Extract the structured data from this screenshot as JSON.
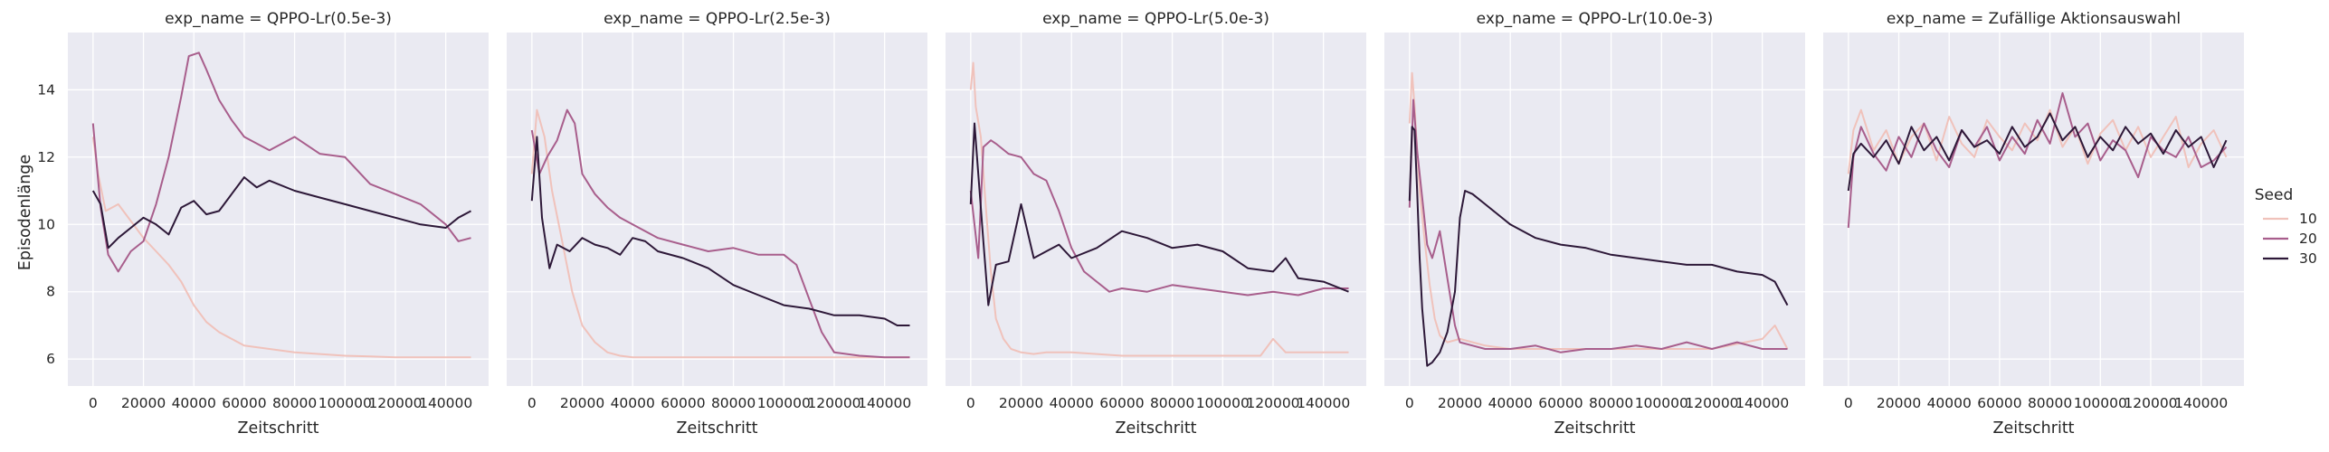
{
  "chart_data": {
    "type": "line",
    "xlabel": "Zeitschritt",
    "ylabel": "Episodenlänge",
    "xlim": [
      -10000,
      157000
    ],
    "ylim": [
      5.2,
      15.7
    ],
    "xticks": [
      0,
      20000,
      40000,
      60000,
      80000,
      100000,
      120000,
      140000
    ],
    "xtick_labels": [
      "0",
      "20000",
      "40000",
      "60000",
      "80000",
      "100000",
      "120000",
      "140000"
    ],
    "yticks": [
      6,
      8,
      10,
      12,
      14
    ],
    "ytick_labels": [
      "6",
      "8",
      "10",
      "12",
      "14"
    ],
    "grid": true,
    "legend": {
      "title": "Seed",
      "placement": "right",
      "entries": [
        {
          "label": "10",
          "color": "#f0c2bb"
        },
        {
          "label": "20",
          "color": "#a85e8c"
        },
        {
          "label": "30",
          "color": "#2d1838"
        }
      ]
    },
    "panels": [
      {
        "title": "exp_name = QPPO-Lr(0.5e-3)",
        "series": [
          {
            "name": "10",
            "x": [
              0,
              2000,
              5000,
              10000,
              15000,
              20000,
              25000,
              30000,
              35000,
              40000,
              45000,
              50000,
              60000,
              70000,
              80000,
              90000,
              100000,
              110000,
              120000,
              130000,
              140000,
              150000
            ],
            "y": [
              12.6,
              11.5,
              10.4,
              10.6,
              10.1,
              9.6,
              9.2,
              8.8,
              8.3,
              7.6,
              7.1,
              6.8,
              6.4,
              6.3,
              6.2,
              6.15,
              6.1,
              6.08,
              6.05,
              6.05,
              6.05,
              6.05
            ]
          },
          {
            "name": "20",
            "x": [
              0,
              3000,
              6000,
              10000,
              15000,
              20000,
              25000,
              30000,
              35000,
              38000,
              42000,
              45000,
              50000,
              55000,
              60000,
              70000,
              80000,
              90000,
              100000,
              110000,
              120000,
              130000,
              140000,
              145000,
              150000
            ],
            "y": [
              13.0,
              10.5,
              9.1,
              8.6,
              9.2,
              9.5,
              10.6,
              12.0,
              13.8,
              15.0,
              15.1,
              14.6,
              13.7,
              13.1,
              12.6,
              12.2,
              12.6,
              12.1,
              12.0,
              11.2,
              10.9,
              10.6,
              10.0,
              9.5,
              9.6
            ]
          },
          {
            "name": "30",
            "x": [
              0,
              3000,
              6000,
              10000,
              15000,
              20000,
              25000,
              30000,
              35000,
              40000,
              45000,
              50000,
              55000,
              60000,
              65000,
              70000,
              80000,
              90000,
              100000,
              110000,
              120000,
              130000,
              140000,
              145000,
              150000
            ],
            "y": [
              11.0,
              10.6,
              9.3,
              9.6,
              9.9,
              10.2,
              10.0,
              9.7,
              10.5,
              10.7,
              10.3,
              10.4,
              10.9,
              11.4,
              11.1,
              11.3,
              11.0,
              10.8,
              10.6,
              10.4,
              10.2,
              10.0,
              9.9,
              10.2,
              10.4
            ]
          }
        ]
      },
      {
        "title": "exp_name = QPPO-Lr(2.5e-3)",
        "series": [
          {
            "name": "10",
            "x": [
              0,
              2000,
              5000,
              8000,
              12000,
              16000,
              20000,
              25000,
              30000,
              35000,
              40000,
              50000,
              60000,
              80000,
              100000,
              120000,
              140000,
              150000
            ],
            "y": [
              11.5,
              13.4,
              12.6,
              11.0,
              9.5,
              8.0,
              7.0,
              6.5,
              6.2,
              6.1,
              6.05,
              6.05,
              6.05,
              6.05,
              6.05,
              6.05,
              6.05,
              6.05
            ]
          },
          {
            "name": "20",
            "x": [
              0,
              3000,
              6000,
              10000,
              14000,
              17000,
              20000,
              25000,
              30000,
              35000,
              40000,
              50000,
              60000,
              70000,
              80000,
              90000,
              100000,
              105000,
              110000,
              115000,
              120000,
              130000,
              140000,
              150000
            ],
            "y": [
              12.8,
              11.5,
              12.0,
              12.5,
              13.4,
              13.0,
              11.5,
              10.9,
              10.5,
              10.2,
              10.0,
              9.6,
              9.4,
              9.2,
              9.3,
              9.1,
              9.1,
              8.8,
              7.8,
              6.8,
              6.2,
              6.1,
              6.05,
              6.05
            ]
          },
          {
            "name": "30",
            "x": [
              0,
              2000,
              4000,
              7000,
              10000,
              15000,
              20000,
              25000,
              30000,
              35000,
              40000,
              45000,
              50000,
              60000,
              70000,
              80000,
              90000,
              100000,
              110000,
              120000,
              130000,
              140000,
              145000,
              150000
            ],
            "y": [
              10.7,
              12.6,
              10.2,
              8.7,
              9.4,
              9.2,
              9.6,
              9.4,
              9.3,
              9.1,
              9.6,
              9.5,
              9.2,
              9.0,
              8.7,
              8.2,
              7.9,
              7.6,
              7.5,
              7.3,
              7.3,
              7.2,
              7.0,
              7.0
            ]
          }
        ]
      },
      {
        "title": "exp_name = QPPO-Lr(5.0e-3)",
        "series": [
          {
            "name": "10",
            "x": [
              0,
              1000,
              2000,
              4000,
              6000,
              8000,
              10000,
              13000,
              16000,
              20000,
              25000,
              30000,
              40000,
              60000,
              80000,
              100000,
              115000,
              120000,
              125000,
              140000,
              150000
            ],
            "y": [
              14.0,
              14.8,
              13.5,
              12.6,
              10.5,
              8.6,
              7.2,
              6.6,
              6.3,
              6.2,
              6.15,
              6.2,
              6.2,
              6.1,
              6.1,
              6.1,
              6.1,
              6.6,
              6.2,
              6.2,
              6.2
            ]
          },
          {
            "name": "20",
            "x": [
              0,
              3000,
              5000,
              8000,
              10000,
              15000,
              20000,
              25000,
              30000,
              35000,
              40000,
              45000,
              50000,
              55000,
              60000,
              70000,
              80000,
              90000,
              100000,
              110000,
              120000,
              130000,
              140000,
              150000
            ],
            "y": [
              11.0,
              9.0,
              12.3,
              12.5,
              12.4,
              12.1,
              12.0,
              11.5,
              11.3,
              10.4,
              9.3,
              8.6,
              8.3,
              8.0,
              8.1,
              8.0,
              8.2,
              8.1,
              8.0,
              7.9,
              8.0,
              7.9,
              8.1,
              8.1
            ]
          },
          {
            "name": "30",
            "x": [
              0,
              1500,
              3000,
              5000,
              7000,
              10000,
              15000,
              20000,
              25000,
              30000,
              35000,
              40000,
              50000,
              60000,
              70000,
              80000,
              90000,
              100000,
              110000,
              120000,
              125000,
              130000,
              140000,
              150000
            ],
            "y": [
              10.6,
              13.0,
              11.5,
              9.5,
              7.6,
              8.8,
              8.9,
              10.6,
              9.0,
              9.2,
              9.4,
              9.0,
              9.3,
              9.8,
              9.6,
              9.3,
              9.4,
              9.2,
              8.7,
              8.6,
              9.0,
              8.4,
              8.3,
              8.0
            ]
          }
        ]
      },
      {
        "title": "exp_name = QPPO-Lr(10.0e-3)",
        "series": [
          {
            "name": "10",
            "x": [
              0,
              1000,
              2000,
              4000,
              6000,
              8000,
              10000,
              12000,
              15000,
              20000,
              25000,
              30000,
              40000,
              60000,
              80000,
              100000,
              120000,
              140000,
              145000,
              150000
            ],
            "y": [
              13.0,
              14.5,
              13.5,
              11.0,
              9.5,
              8.2,
              7.2,
              6.7,
              6.5,
              6.6,
              6.5,
              6.4,
              6.3,
              6.3,
              6.3,
              6.3,
              6.3,
              6.6,
              7.0,
              6.3
            ]
          },
          {
            "name": "20",
            "x": [
              0,
              1500,
              3000,
              5000,
              7000,
              9000,
              12000,
              15000,
              18000,
              20000,
              25000,
              30000,
              40000,
              50000,
              60000,
              70000,
              80000,
              90000,
              100000,
              110000,
              120000,
              130000,
              140000,
              150000
            ],
            "y": [
              10.5,
              13.7,
              12.2,
              10.8,
              9.4,
              9.0,
              9.8,
              8.4,
              7.0,
              6.5,
              6.4,
              6.3,
              6.3,
              6.4,
              6.2,
              6.3,
              6.3,
              6.4,
              6.3,
              6.5,
              6.3,
              6.5,
              6.3,
              6.3
            ]
          },
          {
            "name": "30",
            "x": [
              0,
              1000,
              2000,
              3000,
              4000,
              5000,
              7000,
              9000,
              12000,
              15000,
              18000,
              20000,
              22000,
              25000,
              30000,
              40000,
              50000,
              60000,
              70000,
              80000,
              90000,
              100000,
              110000,
              120000,
              130000,
              140000,
              145000,
              150000
            ],
            "y": [
              10.7,
              12.9,
              12.8,
              11.0,
              9.0,
              7.5,
              5.8,
              5.9,
              6.2,
              6.8,
              8.0,
              10.2,
              11.0,
              10.9,
              10.6,
              10.0,
              9.6,
              9.4,
              9.3,
              9.1,
              9.0,
              8.9,
              8.8,
              8.8,
              8.6,
              8.5,
              8.3,
              7.6
            ]
          }
        ]
      },
      {
        "title": "exp_name = Zufällige Aktionsauswahl",
        "series": [
          {
            "name": "10",
            "x": [
              0,
              2000,
              5000,
              10000,
              15000,
              20000,
              25000,
              30000,
              35000,
              40000,
              45000,
              50000,
              55000,
              60000,
              65000,
              70000,
              75000,
              80000,
              85000,
              90000,
              95000,
              100000,
              105000,
              110000,
              115000,
              120000,
              125000,
              130000,
              135000,
              140000,
              145000,
              150000
            ],
            "y": [
              11.5,
              12.8,
              13.4,
              12.2,
              12.8,
              11.8,
              12.6,
              13.0,
              11.9,
              13.2,
              12.4,
              12.0,
              13.1,
              12.6,
              12.2,
              13.0,
              12.5,
              13.4,
              12.3,
              12.9,
              11.8,
              12.7,
              13.1,
              12.2,
              12.9,
              12.0,
              12.6,
              13.2,
              11.7,
              12.4,
              12.8,
              12.0
            ]
          },
          {
            "name": "20",
            "x": [
              0,
              2000,
              5000,
              10000,
              15000,
              20000,
              25000,
              30000,
              35000,
              40000,
              45000,
              50000,
              55000,
              60000,
              65000,
              70000,
              75000,
              80000,
              85000,
              90000,
              95000,
              100000,
              105000,
              110000,
              115000,
              120000,
              125000,
              130000,
              135000,
              140000,
              145000,
              150000
            ],
            "y": [
              9.9,
              12.0,
              12.9,
              12.1,
              11.6,
              12.6,
              12.0,
              13.0,
              12.2,
              11.7,
              12.8,
              12.3,
              12.9,
              11.9,
              12.6,
              12.1,
              13.1,
              12.4,
              13.9,
              12.6,
              13.0,
              11.9,
              12.5,
              12.2,
              11.4,
              12.6,
              12.2,
              12.0,
              12.6,
              11.7,
              11.9,
              12.3
            ]
          },
          {
            "name": "30",
            "x": [
              0,
              2000,
              5000,
              10000,
              15000,
              20000,
              25000,
              30000,
              35000,
              40000,
              45000,
              50000,
              55000,
              60000,
              65000,
              70000,
              75000,
              80000,
              85000,
              90000,
              95000,
              100000,
              105000,
              110000,
              115000,
              120000,
              125000,
              130000,
              135000,
              140000,
              145000,
              150000
            ],
            "y": [
              11.0,
              12.1,
              12.4,
              12.0,
              12.5,
              11.8,
              12.9,
              12.2,
              12.6,
              11.9,
              12.8,
              12.3,
              12.5,
              12.1,
              12.9,
              12.3,
              12.6,
              13.3,
              12.5,
              12.9,
              12.0,
              12.6,
              12.2,
              12.9,
              12.4,
              12.7,
              12.1,
              12.8,
              12.3,
              12.6,
              11.7,
              12.5
            ]
          }
        ]
      }
    ]
  }
}
